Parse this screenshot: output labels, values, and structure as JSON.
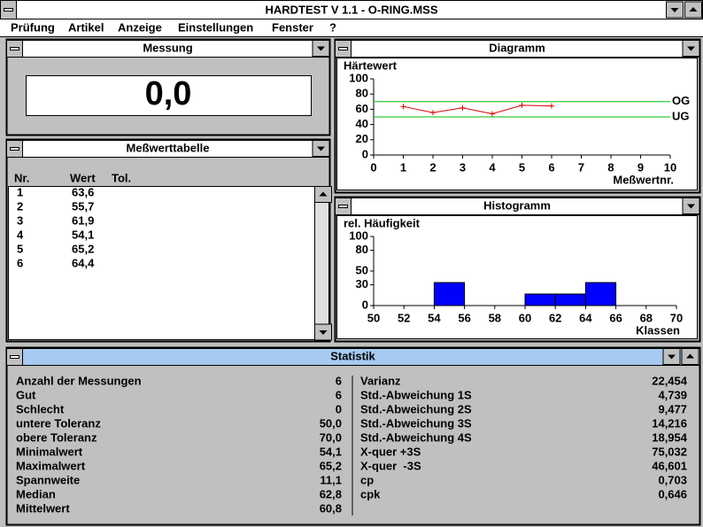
{
  "window": {
    "title": "HARDTEST V 1.1 - O-RING.MSS"
  },
  "menu": [
    "Prüfung",
    "Artikel",
    "Anzeige",
    "Einstellungen",
    "Fenster",
    "?"
  ],
  "measurement": {
    "title": "Messung",
    "display": "0,0"
  },
  "table": {
    "title": "Meßwerttabelle",
    "header": [
      "Nr.",
      "Wert",
      "Tol."
    ],
    "rows": [
      [
        "1",
        "63,6"
      ],
      [
        "2",
        "55,7"
      ],
      [
        "3",
        "61,9"
      ],
      [
        "4",
        "54,1"
      ],
      [
        "5",
        "65,2"
      ],
      [
        "6",
        "64,4"
      ]
    ]
  },
  "chart_data": [
    {
      "type": "line",
      "title": "Diagramm",
      "y_label": "Härtewert",
      "x_label": "Meßwertnr.",
      "x": [
        1,
        2,
        3,
        4,
        5,
        6
      ],
      "values": [
        63.6,
        55.7,
        61.9,
        54.1,
        65.2,
        64.4
      ],
      "color": "#e00000",
      "xlim": [
        0,
        10
      ],
      "xticks": [
        0,
        1,
        2,
        3,
        4,
        5,
        6,
        7,
        8,
        9,
        10
      ],
      "ylim": [
        0,
        100
      ],
      "yticks": [
        0,
        20,
        40,
        60,
        80,
        100
      ],
      "limits": [
        {
          "label": "OG",
          "value": 70,
          "color": "#00c000"
        },
        {
          "label": "UG",
          "value": 50,
          "color": "#00c000"
        }
      ]
    },
    {
      "type": "histogram",
      "title": "Histogramm",
      "y_label": "rel. Häufigkeit",
      "x_label": "Klassen",
      "bins": [
        50,
        52,
        54,
        56,
        58,
        60,
        62,
        64,
        66,
        68,
        70
      ],
      "values": [
        0,
        0,
        33.3,
        0,
        0,
        16.7,
        16.7,
        33.3,
        0,
        0
      ],
      "color": "#0000ff",
      "xlim": [
        50,
        70
      ],
      "xticks": [
        50,
        52,
        54,
        56,
        58,
        60,
        62,
        64,
        66,
        68,
        70
      ],
      "ylim": [
        0,
        100
      ],
      "yticks": [
        0,
        30,
        50,
        80,
        100
      ]
    }
  ],
  "statistics": {
    "title": "Statistik",
    "left": [
      [
        "Anzahl der Messungen",
        "6"
      ],
      [
        "Gut",
        "6"
      ],
      [
        "Schlecht",
        "0"
      ],
      [
        "untere Toleranz",
        "50,0"
      ],
      [
        "obere Toleranz",
        "70,0"
      ],
      [
        "Minimalwert",
        "54,1"
      ],
      [
        "Maximalwert",
        "65,2"
      ],
      [
        "Spannweite",
        "11,1"
      ],
      [
        "Median",
        "62,8"
      ],
      [
        "Mittelwert",
        "60,8"
      ]
    ],
    "right": [
      [
        "Varianz",
        "22,454"
      ],
      [
        "Std.-Abweichung 1S",
        "4,739"
      ],
      [
        "Std.-Abweichung 2S",
        "9,477"
      ],
      [
        "Std.-Abweichung 3S",
        "14,216"
      ],
      [
        "Std.-Abweichung 4S",
        "18,954"
      ],
      [
        "X-quer +3S",
        "75,032"
      ],
      [
        "X-quer  -3S",
        "46,601"
      ],
      [
        "cp",
        "0,703"
      ],
      [
        "cpk",
        "0,646"
      ]
    ]
  }
}
